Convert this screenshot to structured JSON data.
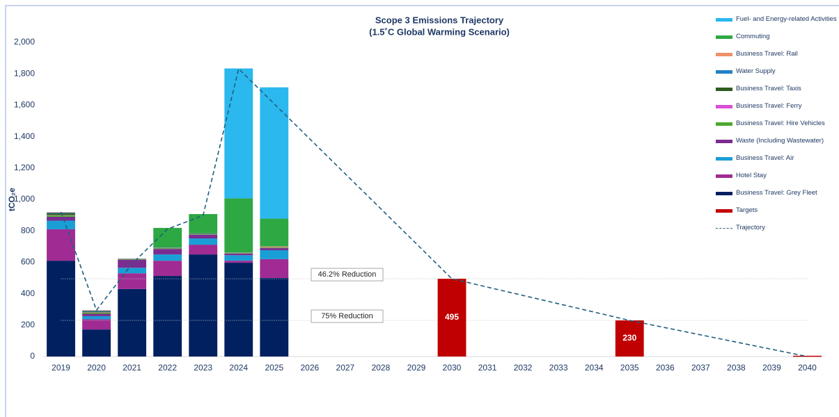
{
  "chart_data": {
    "type": "stacked_bar",
    "title": "Scope 3 Emissions Trajectory",
    "subtitle": "(1.5˚C Global Warming Scenario)",
    "y_label": "tCO₂e",
    "categories": [
      "2019",
      "2020",
      "2021",
      "2022",
      "2023",
      "2024",
      "2025",
      "2026",
      "2027",
      "2028",
      "2029",
      "2030",
      "2031",
      "2032",
      "2033",
      "2034",
      "2035",
      "2036",
      "2037",
      "2038",
      "2039",
      "2040"
    ],
    "ylim": [
      0,
      2000
    ],
    "yticks": [
      0,
      200,
      400,
      600,
      800,
      {
        "value": 1000,
        "label": "1,000"
      },
      {
        "value": 1200,
        "label": "1,200"
      },
      {
        "value": 1400,
        "label": "1,400"
      },
      {
        "value": 1600,
        "label": "1,600"
      },
      {
        "value": 1800,
        "label": "1,800"
      },
      {
        "value": 2000,
        "label": "2,000"
      }
    ],
    "series": [
      {
        "name": "Business Travel: Grey Fleet",
        "color": "#002060",
        "values": [
          610,
          172,
          430,
          513,
          650,
          597,
          500,
          null,
          null,
          null,
          null,
          null,
          null,
          null,
          null,
          null,
          null,
          null,
          null,
          null,
          null,
          null
        ]
      },
      {
        "name": "Hotel Stay",
        "color": "#a02b93",
        "values": [
          200,
          65,
          100,
          97,
          62,
          13,
          120,
          null,
          null,
          null,
          null,
          null,
          null,
          null,
          null,
          null,
          null,
          null,
          null,
          null,
          null,
          null
        ]
      },
      {
        "name": "Business Travel: Air",
        "color": "#1a9ed6",
        "values": [
          55,
          20,
          35,
          40,
          40,
          35,
          57,
          null,
          null,
          null,
          null,
          null,
          null,
          null,
          null,
          null,
          null,
          null,
          null,
          null,
          null,
          null
        ]
      },
      {
        "name": "Waste (Including Wastewater)",
        "color": "#7b2c91",
        "values": [
          25,
          15,
          50,
          35,
          23,
          10,
          13,
          null,
          null,
          null,
          null,
          null,
          null,
          null,
          null,
          null,
          null,
          null,
          null,
          null,
          null,
          null
        ]
      },
      {
        "name": "Business Travel: Hire Vehicles",
        "color": "#4ea72e",
        "values": [
          10,
          8,
          3,
          3,
          3,
          3,
          3,
          null,
          null,
          null,
          null,
          null,
          null,
          null,
          null,
          null,
          null,
          null,
          null,
          null,
          null,
          null
        ]
      },
      {
        "name": "Business Travel: Ferry",
        "color": "#d94fd3",
        "values": [
          2,
          2,
          1,
          1,
          1,
          1,
          1,
          null,
          null,
          null,
          null,
          null,
          null,
          null,
          null,
          null,
          null,
          null,
          null,
          null,
          null,
          null
        ]
      },
      {
        "name": "Business Travel: Taxis",
        "color": "#2f5d1f",
        "values": [
          10,
          5,
          2,
          2,
          2,
          1,
          1,
          null,
          null,
          null,
          null,
          null,
          null,
          null,
          null,
          null,
          null,
          null,
          null,
          null,
          null,
          null
        ]
      },
      {
        "name": "Water Supply",
        "color": "#2481c4",
        "values": [
          5,
          5,
          2,
          2,
          2,
          1,
          1,
          null,
          null,
          null,
          null,
          null,
          null,
          null,
          null,
          null,
          null,
          null,
          null,
          null,
          null,
          null
        ]
      },
      {
        "name": "Business Travel: Rail",
        "color": "#f0906a",
        "values": [
          3,
          3,
          1,
          1,
          1,
          1,
          5,
          null,
          null,
          null,
          null,
          null,
          null,
          null,
          null,
          null,
          null,
          null,
          null,
          null,
          null,
          null
        ]
      },
      {
        "name": "Commuting",
        "color": "#2ea843",
        "values": [
          null,
          null,
          null,
          125,
          123,
          345,
          177,
          null,
          null,
          null,
          null,
          null,
          null,
          null,
          null,
          null,
          null,
          null,
          null,
          null,
          null,
          null
        ]
      },
      {
        "name": "Fuel- and Energy-related Activities",
        "color": "#2bb8ee",
        "values": [
          null,
          null,
          null,
          null,
          null,
          827,
          836,
          null,
          null,
          null,
          null,
          null,
          null,
          null,
          null,
          null,
          null,
          null,
          null,
          null,
          null,
          null
        ]
      }
    ],
    "targets": {
      "name": "Targets",
      "color": "#c00000",
      "values": [
        null,
        null,
        null,
        null,
        null,
        null,
        null,
        null,
        null,
        null,
        null,
        495,
        null,
        null,
        null,
        null,
        230,
        null,
        null,
        null,
        null,
        5
      ],
      "value_labels": [
        null,
        null,
        null,
        null,
        null,
        null,
        null,
        null,
        null,
        null,
        null,
        "495",
        null,
        null,
        null,
        null,
        "230",
        null,
        null,
        null,
        null,
        null
      ]
    },
    "trajectory": {
      "name": "Trajectory",
      "color": "#1f5f7f",
      "values": [
        920,
        295,
        590,
        812,
        898,
        1832,
        1609,
        1386,
        1163,
        941,
        718,
        495,
        442,
        389,
        336,
        283,
        230,
        184,
        138,
        92,
        46,
        0
      ]
    },
    "reference_lines": [
      {
        "label": "46.2% Reduction",
        "value": 495
      },
      {
        "label": "75% Reduction",
        "value": 230
      }
    ]
  }
}
